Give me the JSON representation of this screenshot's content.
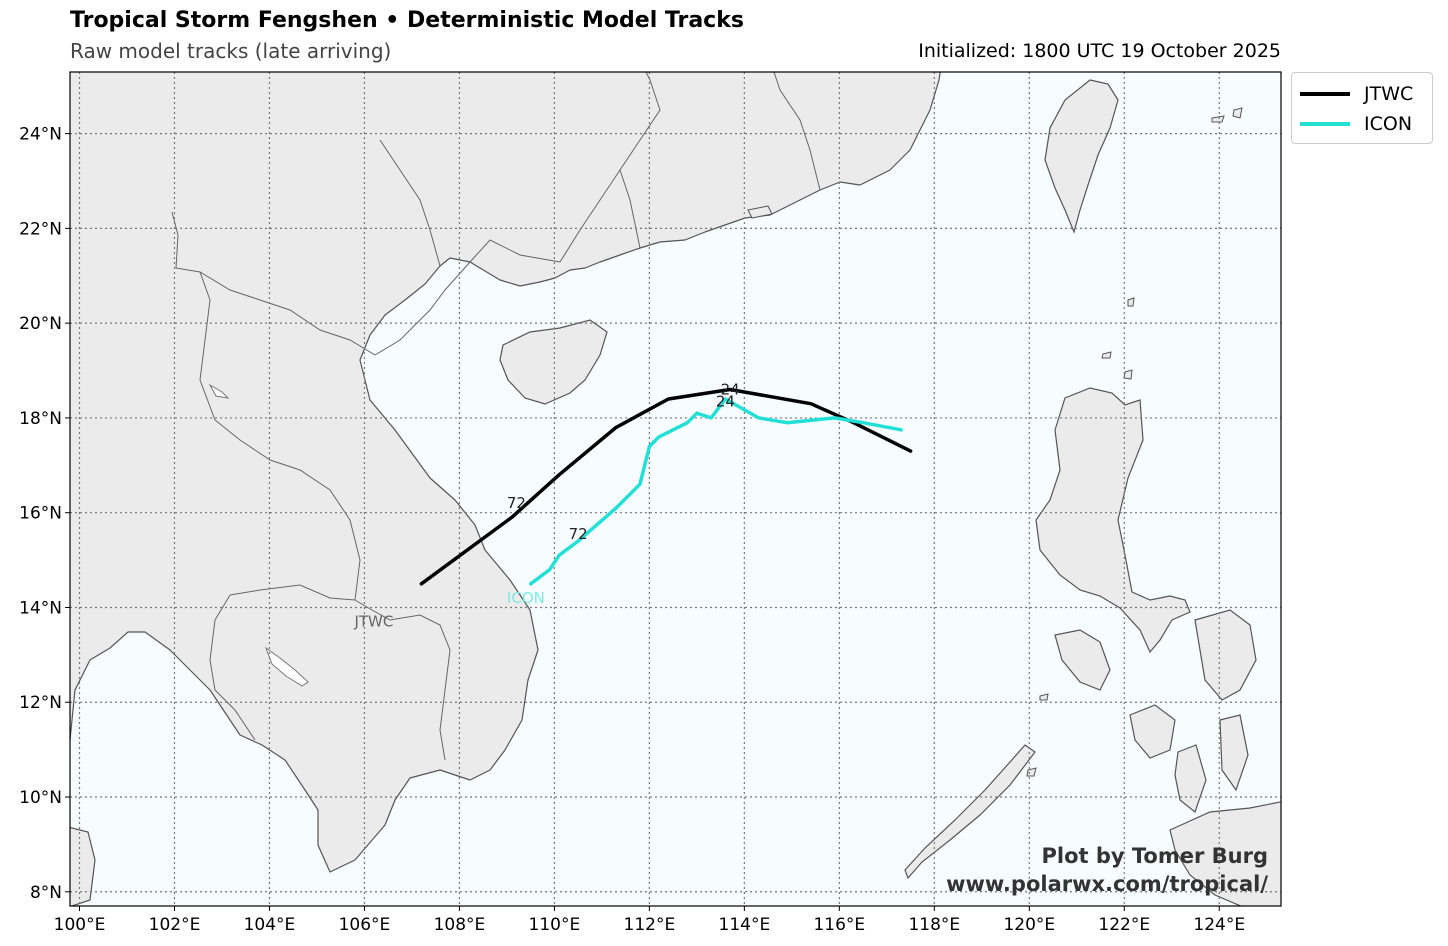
{
  "header": {
    "title": "Tropical Storm Fengshen • Deterministic Model Tracks",
    "subtitle": "Raw model tracks (late arriving)",
    "initialized": "Initialized: 1800 UTC 19 October 2025"
  },
  "map": {
    "lon_range": [
      99.8,
      125.3
    ],
    "lat_range": [
      7.7,
      25.3
    ],
    "lon_ticks": [
      100,
      102,
      104,
      106,
      108,
      110,
      112,
      114,
      116,
      118,
      120,
      122,
      124
    ],
    "lat_ticks": [
      8,
      10,
      12,
      14,
      16,
      18,
      20,
      22,
      24
    ],
    "lon_tick_labels": [
      "100°E",
      "102°E",
      "104°E",
      "106°E",
      "108°E",
      "110°E",
      "112°E",
      "114°E",
      "116°E",
      "118°E",
      "120°E",
      "122°E",
      "124°E"
    ],
    "lat_tick_labels": [
      "8°N",
      "10°N",
      "12°N",
      "14°N",
      "16°N",
      "18°N",
      "20°N",
      "22°N",
      "24°N"
    ],
    "grid": true,
    "ocean_color": "#f7fcff",
    "land_color": "#ebebeb",
    "coast_color": "#555555"
  },
  "tracks": [
    {
      "name": "JTWC",
      "color": "#000000",
      "points": [
        [
          117.5,
          17.3
        ],
        [
          116.3,
          17.9
        ],
        [
          115.4,
          18.3
        ],
        [
          113.7,
          18.6
        ],
        [
          112.4,
          18.4
        ],
        [
          111.3,
          17.8
        ],
        [
          110.1,
          16.8
        ],
        [
          109.1,
          15.9
        ],
        [
          107.2,
          14.5
        ]
      ],
      "end_label": "JTWC",
      "end_label_pos": [
        106.2,
        13.7
      ],
      "hour_labels": [
        {
          "text": "24",
          "lon": 113.7,
          "lat": 18.6
        },
        {
          "text": "72",
          "lon": 109.2,
          "lat": 16.2
        }
      ]
    },
    {
      "name": "ICON",
      "color": "#22e0d6",
      "points": [
        [
          117.3,
          17.75
        ],
        [
          116.5,
          17.9
        ],
        [
          115.9,
          18.0
        ],
        [
          114.9,
          17.9
        ],
        [
          114.3,
          18.0
        ],
        [
          113.6,
          18.4
        ],
        [
          113.3,
          18.0
        ],
        [
          113.0,
          18.1
        ],
        [
          112.8,
          17.9
        ],
        [
          112.2,
          17.6
        ],
        [
          112.0,
          17.4
        ],
        [
          111.8,
          16.6
        ],
        [
          111.3,
          16.1
        ],
        [
          110.5,
          15.4
        ],
        [
          110.1,
          15.1
        ],
        [
          109.9,
          14.8
        ],
        [
          109.5,
          14.5
        ]
      ],
      "end_label": "ICON",
      "end_label_pos": [
        109.4,
        14.2
      ],
      "hour_labels": [
        {
          "text": "24",
          "lon": 113.6,
          "lat": 18.35
        },
        {
          "text": "72",
          "lon": 110.5,
          "lat": 15.55
        }
      ]
    }
  ],
  "legend": {
    "position": "upper-right-outside",
    "items": [
      {
        "label": "JTWC",
        "color": "#000000"
      },
      {
        "label": "ICON",
        "color": "#22e0d6"
      }
    ]
  },
  "credit": {
    "line1": "Plot by Tomer Burg",
    "line2": "www.polarwx.com/tropical/"
  }
}
